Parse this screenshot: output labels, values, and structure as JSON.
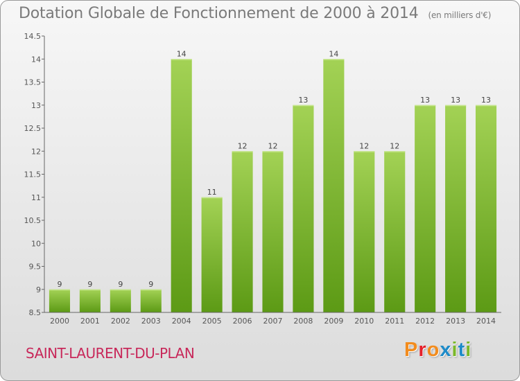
{
  "header": {
    "title": "Dotation Globale de Fonctionnement de 2000 à 2014",
    "unit": "(en milliers d'€)"
  },
  "footer": {
    "commune": "SAINT-LAURENT-DU-PLAN",
    "logo_text": "Proxiti"
  },
  "colors": {
    "bar_top": "#a3d255",
    "bar_bottom": "#5c9a15",
    "commune": "#c8285a",
    "logo_letters": [
      "#f28c1e",
      "#e4212b",
      "#f28c1e",
      "#1e8bc8",
      "#7ab829",
      "#1e8bc8",
      "#7ab829"
    ]
  },
  "chart_data": {
    "type": "bar",
    "title": "Dotation Globale de Fonctionnement de 2000 à 2014",
    "subtitle": "(en milliers d'€)",
    "xlabel": "",
    "ylabel": "",
    "categories": [
      "2000",
      "2001",
      "2002",
      "2003",
      "2004",
      "2005",
      "2006",
      "2007",
      "2008",
      "2009",
      "2010",
      "2011",
      "2012",
      "2013",
      "2014"
    ],
    "values": [
      9,
      9,
      9,
      9,
      14,
      11,
      12,
      12,
      13,
      14,
      12,
      12,
      13,
      13,
      13
    ],
    "data_labels": [
      "9",
      "9",
      "9",
      "9",
      "14",
      "11",
      "12",
      "12",
      "13",
      "14",
      "12",
      "12",
      "13",
      "13",
      "13"
    ],
    "ylim": [
      8.5,
      14.5
    ],
    "yticks": [
      8.5,
      9,
      9.5,
      10,
      10.5,
      11,
      11.5,
      12,
      12.5,
      13,
      13.5,
      14,
      14.5
    ],
    "ytick_labels": [
      "8.5",
      "9",
      "9.5",
      "10",
      "10.5",
      "11",
      "11.5",
      "12",
      "12.5",
      "13",
      "13.5",
      "14",
      "14.5"
    ],
    "grid": false,
    "legend": "none"
  }
}
